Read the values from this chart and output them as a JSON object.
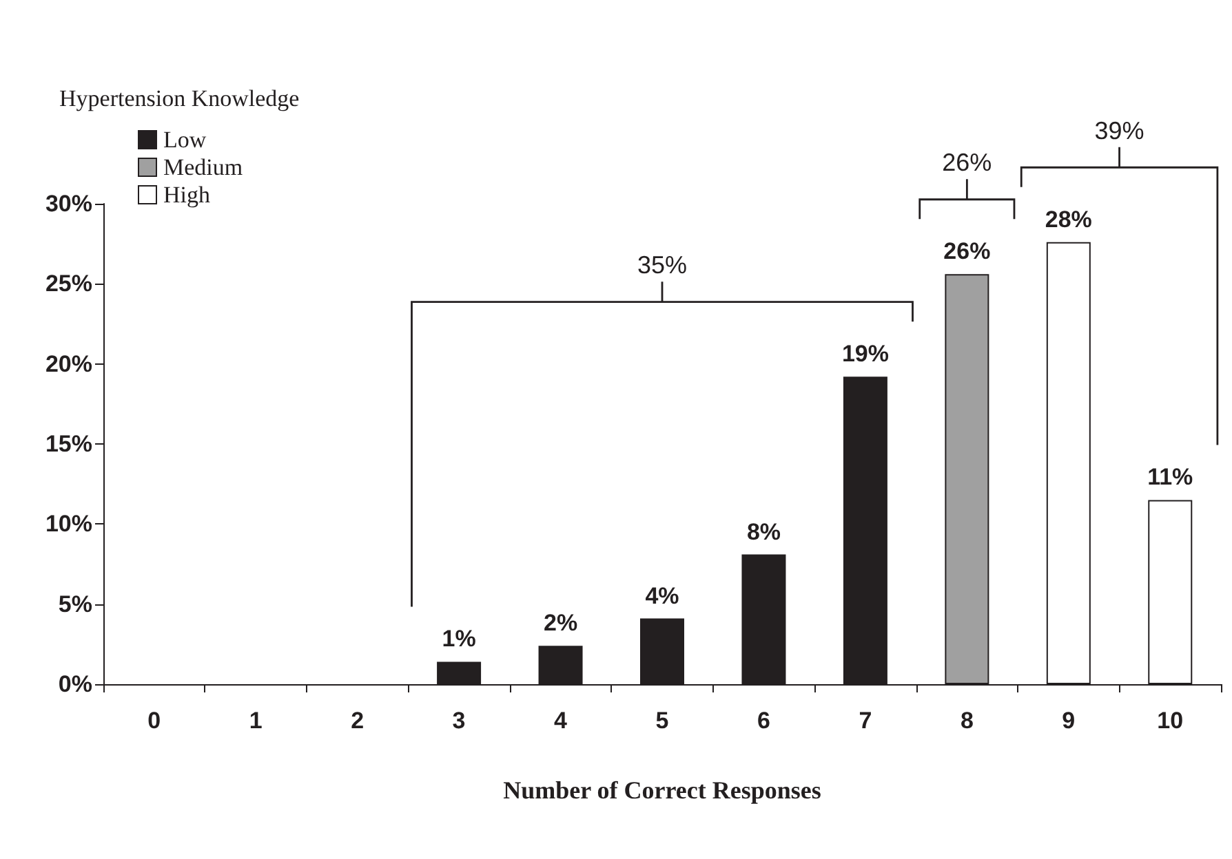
{
  "chart_data": {
    "type": "bar",
    "legend_title": "Hypertension Knowledge",
    "xlabel": "Number of Correct Responses",
    "categories": [
      "0",
      "1",
      "2",
      "3",
      "4",
      "5",
      "6",
      "7",
      "8",
      "9",
      "10"
    ],
    "series": [
      {
        "name": "Low",
        "color": "#231f20",
        "values": [
          null,
          null,
          null,
          1.4,
          2.4,
          4.1,
          8.1,
          19.2,
          null,
          null,
          null
        ],
        "value_labels": [
          null,
          null,
          null,
          "1%",
          "2%",
          "4%",
          "8%",
          "19%",
          null,
          null,
          null
        ]
      },
      {
        "name": "Medium",
        "color": "#a0a0a0",
        "values": [
          null,
          null,
          null,
          null,
          null,
          null,
          null,
          null,
          25.6,
          null,
          null
        ],
        "value_labels": [
          null,
          null,
          null,
          null,
          null,
          null,
          null,
          null,
          "26%",
          null,
          null
        ]
      },
      {
        "name": "High",
        "color": "#ffffff",
        "values": [
          null,
          null,
          null,
          null,
          null,
          null,
          null,
          null,
          null,
          27.6,
          11.5
        ],
        "value_labels": [
          null,
          null,
          null,
          null,
          null,
          null,
          null,
          null,
          null,
          "28%",
          "11%"
        ]
      }
    ],
    "annotations": [
      "35%",
      "26%",
      "39%"
    ],
    "ylim": [
      0,
      30
    ],
    "yticks": [
      {
        "value": 0,
        "label": "0%"
      },
      {
        "value": 5,
        "label": "5%"
      },
      {
        "value": 10,
        "label": "10%"
      },
      {
        "value": 15,
        "label": "15%"
      },
      {
        "value": 20,
        "label": "20%"
      },
      {
        "value": 25,
        "label": "25%"
      },
      {
        "value": 30,
        "label": "30%"
      }
    ],
    "grid": false,
    "legend": "top left"
  }
}
